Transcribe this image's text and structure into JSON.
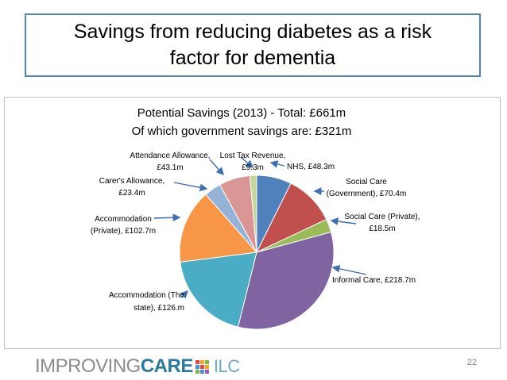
{
  "slide": {
    "title": "Savings from reducing diabetes as a risk\nfactor for dementia",
    "page_number": "22"
  },
  "logo": {
    "part1": "IMPROVING",
    "part2": "CARE",
    "part3": "ILC",
    "grid_colors": [
      "#e8463c",
      "#f5a623",
      "#7ab648",
      "#4a90d9",
      "#e8463c",
      "#f5a623",
      "#7ab648",
      "#4a90d9",
      "#9b59b6"
    ]
  },
  "chart_data": {
    "type": "pie",
    "title_lines": [
      "Potential Savings (2013) - Total: £661m",
      "Of which government savings are: £321m"
    ],
    "unit": "£m",
    "slices": [
      {
        "name": "NHS",
        "value": 48.3,
        "label_lines": [
          "NHS, £48.3m"
        ],
        "color": "#4f81bd"
      },
      {
        "name": "Social Care (Government)",
        "value": 70.4,
        "label_lines": [
          "Social Care",
          "(Government), £70.4m"
        ],
        "color": "#c0504d"
      },
      {
        "name": "Social Care (Private)",
        "value": 18.5,
        "label_lines": [
          "Social Care (Private),",
          "£18.5m"
        ],
        "color": "#9bbb59"
      },
      {
        "name": "Informal Care",
        "value": 218.7,
        "label_lines": [
          "Informal Care, £218.7m"
        ],
        "color": "#8064a2"
      },
      {
        "name": "Accommodation (The state)",
        "value": 126.0,
        "label_lines": [
          "Accommodation (The",
          "state), £126.m"
        ],
        "color": "#4bacc6"
      },
      {
        "name": "Accommodation (Private)",
        "value": 102.7,
        "label_lines": [
          "Accommodation",
          "(Private), £102.7m"
        ],
        "color": "#f79646"
      },
      {
        "name": "Carer's Allowance",
        "value": 23.4,
        "label_lines": [
          "Carer's Allowance,",
          "£23.4m"
        ],
        "color": "#95b3d7"
      },
      {
        "name": "Attendance Allowance",
        "value": 43.1,
        "label_lines": [
          "Attendance Allowance,",
          "£43.1m"
        ],
        "color": "#d99694"
      },
      {
        "name": "Lost Tax Revenue",
        "value": 9.3,
        "label_lines": [
          "Lost Tax Revenue,",
          "£9.3m"
        ],
        "color": "#c3d69b"
      }
    ]
  }
}
